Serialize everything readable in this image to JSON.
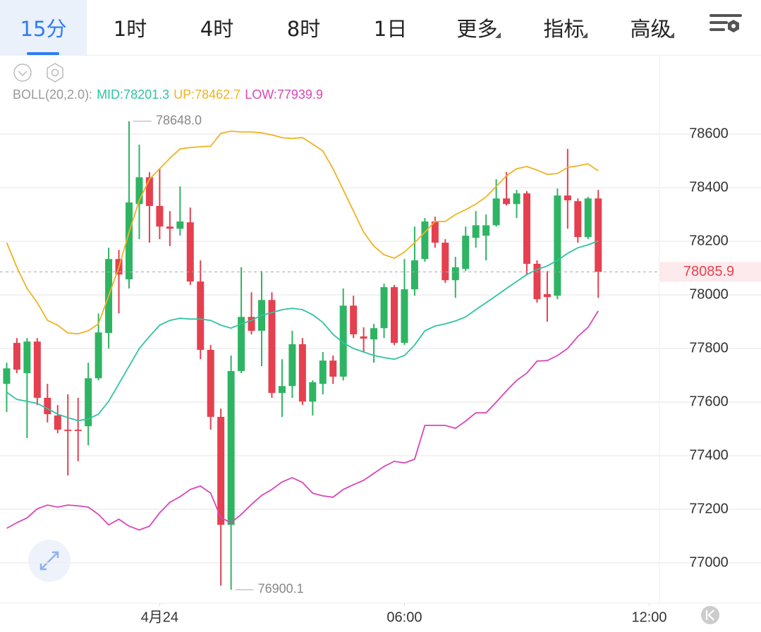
{
  "tabs": {
    "items": [
      "15分",
      "1时",
      "4时",
      "8时",
      "1日",
      "更多",
      "指标",
      "高级"
    ],
    "selected": 0
  },
  "chart_data": {
    "type": "candlestick",
    "indicator": "BOLL(20,2.0):",
    "x": [
      "20:15",
      "20:30",
      "20:45",
      "21:00",
      "21:15",
      "21:30",
      "21:45",
      "22:00",
      "22:15",
      "22:30",
      "22:45",
      "23:00",
      "23:15",
      "23:30",
      "23:45",
      "00:00",
      "00:15",
      "00:30",
      "00:45",
      "01:00",
      "01:15",
      "01:30",
      "01:45",
      "02:00",
      "02:15",
      "02:30",
      "02:45",
      "03:00",
      "03:15",
      "03:30",
      "03:45",
      "04:00",
      "04:15",
      "04:30",
      "04:45",
      "05:00",
      "05:15",
      "05:30",
      "05:45",
      "06:00",
      "06:15",
      "06:30",
      "06:45",
      "07:00",
      "07:15",
      "07:30",
      "07:45",
      "08:00",
      "08:15",
      "08:30",
      "08:45",
      "09:00",
      "09:15",
      "09:30",
      "09:45",
      "10:00",
      "10:15",
      "10:30",
      "10:45"
    ],
    "open": [
      77668,
      77821,
      77708,
      77826,
      77616,
      77550,
      77497,
      77497,
      77510,
      77689,
      77858,
      78134,
      78058,
      78339,
      78439,
      78332,
      78255,
      78247,
      78271,
      78050,
      77795,
      77545,
      77142,
      77716,
      77918,
      77866,
      77981,
      77634,
      77660,
      77816,
      77602,
      77668,
      77755,
      77695,
      77960,
      77845,
      77834,
      77876,
      78029,
      77821,
      78021,
      78134,
      78274,
      78195,
      78055,
      78097,
      78213,
      78221,
      78260,
      78360,
      78339,
      78379,
      78116,
      78003,
      77997,
      78371,
      78350,
      78216,
      78360
    ],
    "high": [
      77747,
      77839,
      77839,
      77839,
      77668,
      77589,
      77629,
      77616,
      77747,
      77931,
      78176,
      78168,
      78648,
      78561,
      78458,
      78471,
      78313,
      78405,
      78326,
      78129,
      77813,
      77576,
      77774,
      78103,
      78010,
      78089,
      78010,
      77760,
      77866,
      77839,
      77681,
      77787,
      77774,
      78024,
      77997,
      77879,
      77892,
      78042,
      78037,
      78134,
      78255,
      78287,
      78292,
      78208,
      78142,
      78255,
      78313,
      78300,
      78432,
      78458,
      78392,
      78387,
      78129,
      78089,
      78397,
      78545,
      78360,
      78366,
      78392
    ],
    "low": [
      77563,
      77708,
      77466,
      77589,
      77524,
      77484,
      77326,
      77379,
      77439,
      77681,
      77800,
      77931,
      78024,
      78208,
      78195,
      78208,
      78182,
      78221,
      78037,
      77760,
      77497,
      76915,
      76900.1,
      77708,
      77853,
      77734,
      77616,
      77545,
      77616,
      77589,
      77550,
      77629,
      77668,
      77681,
      77839,
      77787,
      77747,
      77839,
      77813,
      77813,
      77997,
      78124,
      78176,
      78045,
      77989,
      78089,
      78176,
      78129,
      78255,
      78334,
      78287,
      78076,
      77971,
      77900,
      77984,
      78247,
      78195,
      78208,
      77989
    ],
    "close": [
      77726,
      77721,
      77826,
      77616,
      77555,
      77497,
      77492,
      77492,
      77689,
      77860,
      78134,
      78076,
      78345,
      78439,
      78332,
      78255,
      78247,
      78274,
      78050,
      77795,
      77545,
      77142,
      77716,
      77918,
      77866,
      77981,
      77634,
      77660,
      77816,
      77602,
      77674,
      77755,
      77695,
      77960,
      77853,
      77837,
      77876,
      78029,
      77821,
      78021,
      78129,
      78274,
      78195,
      78055,
      78103,
      78221,
      78260,
      78260,
      78360,
      78339,
      78379,
      78116,
      77984,
      77992,
      78371,
      78353,
      78216,
      78360,
      78085.9
    ],
    "up_color": "#2fb463",
    "down_color": "#e5404f",
    "series": [
      {
        "name": "MID:78201.3",
        "color": "#2fc3a3",
        "values": [
          77637,
          77610,
          77603,
          77595,
          77576,
          77555,
          77542,
          77531,
          77537,
          77555,
          77603,
          77668,
          77734,
          77800,
          77845,
          77887,
          77905,
          77913,
          77910,
          77910,
          77905,
          77887,
          77876,
          77892,
          77905,
          77924,
          77934,
          77945,
          77950,
          77945,
          77926,
          77897,
          77853,
          77821,
          77800,
          77787,
          77774,
          77766,
          77760,
          77774,
          77813,
          77866,
          77884,
          77892,
          77903,
          77918,
          77945,
          77971,
          77997,
          78024,
          78050,
          78076,
          78095,
          78108,
          78129,
          78155,
          78176,
          78187,
          78201.3
        ]
      },
      {
        "name": "UP:78462.7",
        "color": "#efb324",
        "values": [
          78195,
          78103,
          78024,
          77971,
          77905,
          77887,
          77858,
          77855,
          77866,
          77892,
          77997,
          78103,
          78234,
          78353,
          78432,
          78471,
          78510,
          78545,
          78550,
          78553,
          78555,
          78603,
          78611,
          78608,
          78608,
          78605,
          78597,
          78587,
          78584,
          78587,
          78563,
          78537,
          78471,
          78392,
          78313,
          78234,
          78182,
          78150,
          78137,
          78160,
          78195,
          78234,
          78274,
          78274,
          78300,
          78318,
          78339,
          78366,
          78405,
          78445,
          78471,
          78479,
          78466,
          78450,
          78453,
          78476,
          78482,
          78489,
          78462.7
        ]
      },
      {
        "name": "LOW:77939.9",
        "color": "#d946b8",
        "values": [
          77129,
          77150,
          77168,
          77202,
          77216,
          77208,
          77216,
          77213,
          77208,
          77181,
          77142,
          77163,
          77137,
          77123,
          77137,
          77187,
          77226,
          77247,
          77274,
          77287,
          77260,
          77168,
          77150,
          77181,
          77218,
          77252,
          77274,
          77302,
          77318,
          77300,
          77260,
          77250,
          77245,
          77274,
          77292,
          77308,
          77334,
          77360,
          77379,
          77373,
          77387,
          77513,
          77513,
          77513,
          77502,
          77529,
          77560,
          77560,
          77600,
          77642,
          77681,
          77708,
          77753,
          77755,
          77774,
          77800,
          77845,
          77879,
          77939.9
        ]
      }
    ],
    "xlim": [
      "20:00",
      "12:15"
    ],
    "xticks": [
      {
        "value": "00:00",
        "label": "4月24"
      },
      "06:00",
      "12:00"
    ],
    "ylim": [
      76850,
      78890
    ],
    "yticks": [
      77000,
      77200,
      77400,
      77600,
      77800,
      78000,
      78200,
      78400,
      78600
    ],
    "grid": true,
    "last_price": 78085.9,
    "annotations": [
      {
        "x": "23:15",
        "value": 78648,
        "label": "78648.0"
      },
      {
        "x": "01:45",
        "value": 76900.1,
        "label": "76900.1"
      }
    ]
  }
}
